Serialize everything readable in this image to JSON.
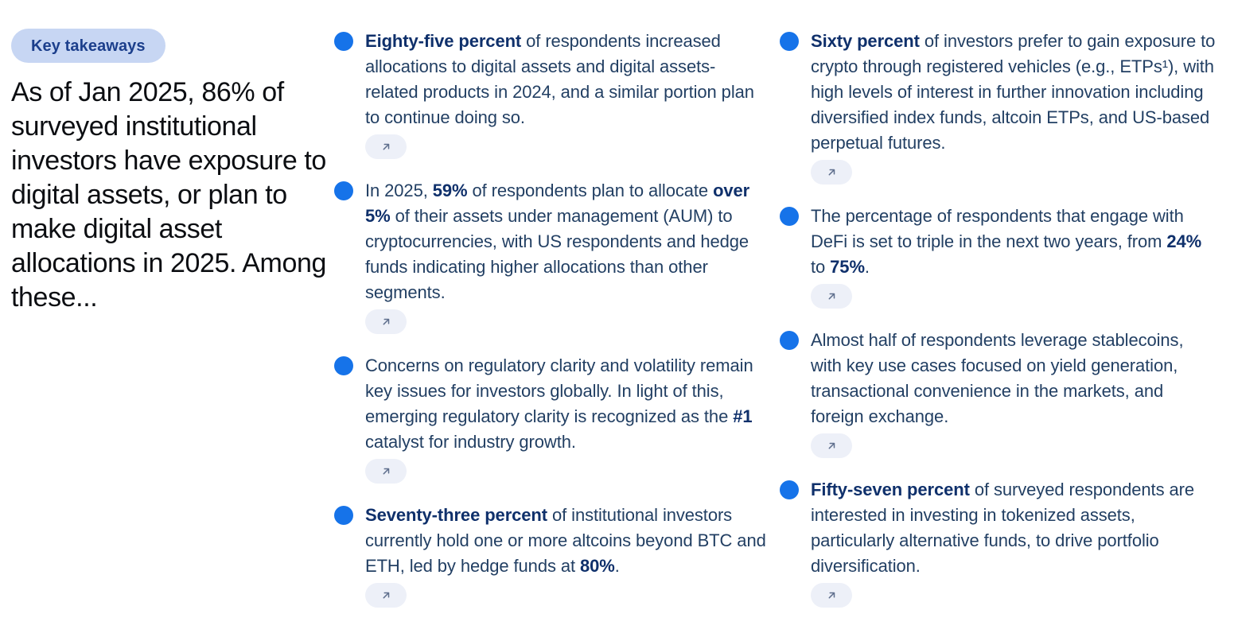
{
  "badge": {
    "label": "Key takeaways"
  },
  "intro": {
    "heading": "As of Jan 2025, 86% of surveyed institutional investors have exposure to digital assets, or plan to make digital asset allocations in 2025. Among these..."
  },
  "link_button": {
    "aria_label": "Open related source",
    "icon": "arrow-up-right-icon"
  },
  "colors": {
    "background": "#ffffff",
    "bullet": "#1673e9",
    "badge_bg": "#c7d6f3",
    "badge_text": "#1c3f8c",
    "heading_text": "#0c0e12",
    "body_text": "#223f63",
    "bold_text": "#0f306b",
    "pill_bg": "#edf0f8",
    "arrow": "#5f6f8d"
  },
  "columns": [
    {
      "items": [
        {
          "segments": [
            {
              "text": "Eighty-five percent",
              "bold": true
            },
            {
              "text": " of respondents increased allocations to digital assets and digital assets-related products in 2024, and a similar portion plan to continue doing so.",
              "bold": false
            }
          ]
        },
        {
          "segments": [
            {
              "text": "In 2025, ",
              "bold": false
            },
            {
              "text": "59%",
              "bold": true
            },
            {
              "text": " of respondents plan to allocate ",
              "bold": false
            },
            {
              "text": "over 5%",
              "bold": true
            },
            {
              "text": " of their assets under management (AUM) to cryptocurrencies, with US respondents and hedge funds indicating higher allocations than other segments.",
              "bold": false
            }
          ]
        },
        {
          "segments": [
            {
              "text": "Concerns on regulatory clarity and volatility remain key issues for investors globally. In light of this, emerging regulatory clarity is recognized as the ",
              "bold": false
            },
            {
              "text": "#1",
              "bold": true
            },
            {
              "text": " catalyst for industry growth.",
              "bold": false
            }
          ]
        },
        {
          "segments": [
            {
              "text": "Seventy-three percent",
              "bold": true
            },
            {
              "text": " of institutional investors currently hold one or more altcoins beyond BTC and ETH, led by hedge funds at ",
              "bold": false
            },
            {
              "text": "80%",
              "bold": true
            },
            {
              "text": ".",
              "bold": false
            }
          ]
        }
      ]
    },
    {
      "items": [
        {
          "segments": [
            {
              "text": "Sixty percent",
              "bold": true
            },
            {
              "text": " of investors prefer to gain exposure to crypto through registered vehicles (e.g., ETPs¹), with high levels of interest in further innovation including diversified index funds, altcoin ETPs, and US-based perpetual futures.",
              "bold": false
            }
          ]
        },
        {
          "segments": [
            {
              "text": "The percentage of respondents that engage with DeFi is set to triple in the next two years, from ",
              "bold": false
            },
            {
              "text": "24%",
              "bold": true
            },
            {
              "text": " to ",
              "bold": false
            },
            {
              "text": "75%",
              "bold": true
            },
            {
              "text": ".",
              "bold": false
            }
          ]
        },
        {
          "segments": [
            {
              "text": "Almost half of respondents leverage stablecoins, with key use cases focused on yield generation, transactional convenience in the markets, and foreign exchange.",
              "bold": false
            }
          ]
        },
        {
          "segments": [
            {
              "text": "Fifty-seven percent",
              "bold": true
            },
            {
              "text": " of surveyed respondents are interested in investing in tokenized assets, particularly alternative funds, to drive portfolio diversification.",
              "bold": false
            }
          ]
        }
      ]
    }
  ]
}
